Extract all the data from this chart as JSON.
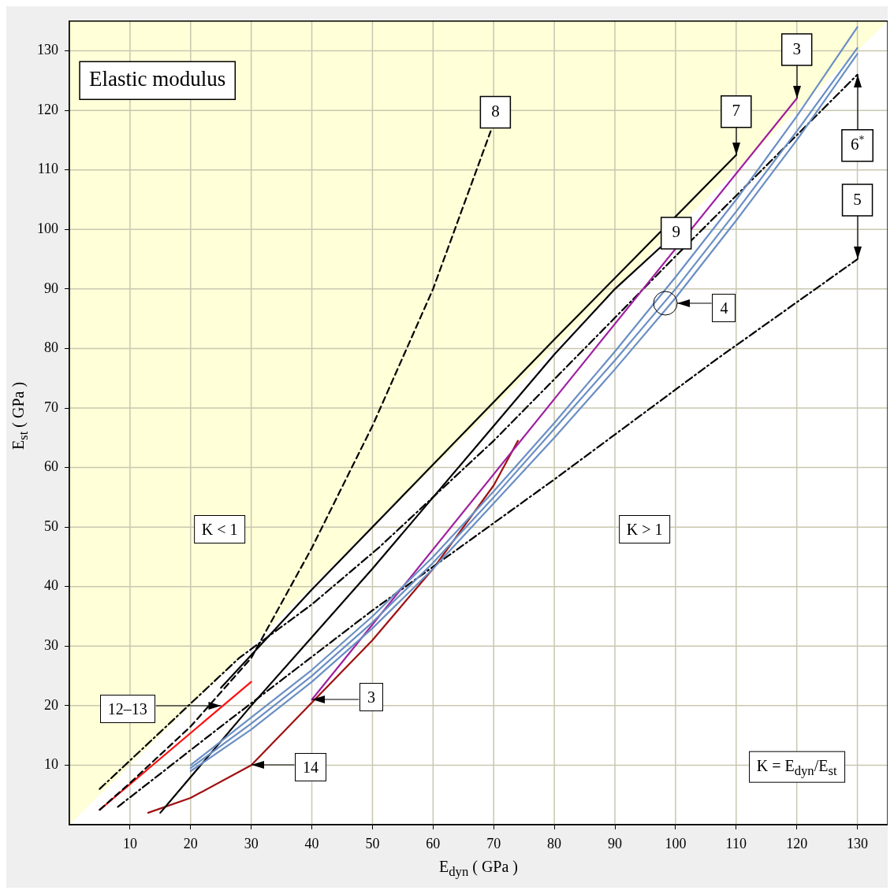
{
  "chart_data": {
    "type": "line",
    "title": "Elastic modulus",
    "xlabel": "E$_{dyn}$ ( GPa )",
    "ylabel": "E$_{st}$ ( GPa )",
    "xlim": [
      0,
      135
    ],
    "ylim": [
      0,
      135
    ],
    "xticks": [
      10,
      20,
      30,
      40,
      50,
      60,
      70,
      80,
      90,
      100,
      110,
      120,
      130
    ],
    "yticks": [
      10,
      20,
      30,
      40,
      50,
      60,
      70,
      80,
      90,
      100,
      110,
      120,
      130
    ],
    "grid": true,
    "marker": "none",
    "series": [
      {
        "type": "area",
        "color": "#ffffd8",
        "x": [
          0,
          135
        ],
        "values": [
          0,
          135
        ]
      },
      {
        "color": "#6a8fc4",
        "line_style": "solid",
        "x": [
          20,
          30,
          40,
          50,
          60,
          70,
          80,
          90,
          100,
          110,
          120,
          130
        ],
        "values": [
          10,
          18,
          26,
          35,
          45,
          56,
          67.5,
          79.5,
          92,
          105,
          119,
          134
        ]
      },
      {
        "color": "#6a8fc4",
        "line_style": "solid",
        "x": [
          20,
          30,
          40,
          50,
          60,
          70,
          80,
          90,
          100,
          110,
          120,
          130
        ],
        "values": [
          9.5,
          17,
          25,
          34,
          44,
          55,
          66.5,
          78,
          90,
          103,
          116.5,
          130.5
        ]
      },
      {
        "color": "#6a8fc4",
        "line_style": "solid",
        "x": [
          20,
          30,
          40,
          50,
          60,
          70,
          80,
          90,
          100,
          110,
          120,
          130
        ],
        "values": [
          9,
          16,
          24,
          33,
          43,
          54,
          65,
          76.5,
          88.5,
          101.5,
          115,
          129.5
        ]
      },
      {
        "color": "#a020a0",
        "line_style": "solid",
        "x": [
          40,
          80,
          120
        ],
        "values": [
          21,
          71.5,
          122
        ]
      },
      {
        "color": "#000000",
        "line_style": "solid",
        "x": [
          25,
          40,
          60,
          80,
          110
        ],
        "values": [
          23,
          39.5,
          60.5,
          81.5,
          112.5
        ]
      },
      {
        "color": "#000000",
        "line_style": "solid",
        "x": [
          15,
          20,
          30,
          40,
          50,
          60,
          70,
          80,
          90,
          97.5
        ],
        "values": [
          2,
          8,
          20,
          31.5,
          43,
          55,
          67,
          79,
          90,
          97
        ]
      },
      {
        "color": "#000000",
        "line_style": "dashed",
        "x": [
          5,
          10,
          20,
          30,
          40,
          50,
          60,
          69.5
        ],
        "values": [
          2.5,
          7,
          16.5,
          28,
          46.5,
          67,
          90,
          116.5
        ]
      },
      {
        "color": "#000000",
        "line_style": "dashdot",
        "x": [
          5,
          28,
          40,
          51,
          70,
          85,
          100,
          130
        ],
        "values": [
          6,
          28,
          37,
          46.5,
          64.5,
          80,
          95.5,
          126
        ]
      },
      {
        "color": "#000000",
        "line_style": "dashdot",
        "x": [
          8,
          25,
          50,
          80,
          106.5,
          130
        ],
        "values": [
          3,
          16.5,
          36,
          58,
          78,
          95
        ]
      },
      {
        "color": "#a01010",
        "line_style": "solid",
        "x": [
          13,
          20,
          30,
          40,
          50,
          60,
          70,
          74
        ],
        "values": [
          2,
          4.5,
          10,
          20.5,
          31,
          43,
          57,
          64.5
        ]
      },
      {
        "color": "#ff1010",
        "line_style": "solid",
        "x": [
          5,
          30
        ],
        "values": [
          2.5,
          24
        ]
      }
    ],
    "annotations": [
      {
        "text": "3",
        "x": 120,
        "y": 122
      },
      {
        "text": "7",
        "x": 110,
        "y": 112.5
      },
      {
        "text": "8",
        "x": 69.5,
        "y": 116.5
      },
      {
        "text": "9",
        "x": 97.5,
        "y": 97
      },
      {
        "text": "5",
        "x": 130,
        "y": 95
      },
      {
        "text": "6$^{*}$",
        "x": 130,
        "y": 126
      },
      "4",
      "3",
      "14",
      "12–13",
      "K < 1",
      "K > 1",
      "K = E$_{dyn}$/E$_{st}$"
    ]
  }
}
